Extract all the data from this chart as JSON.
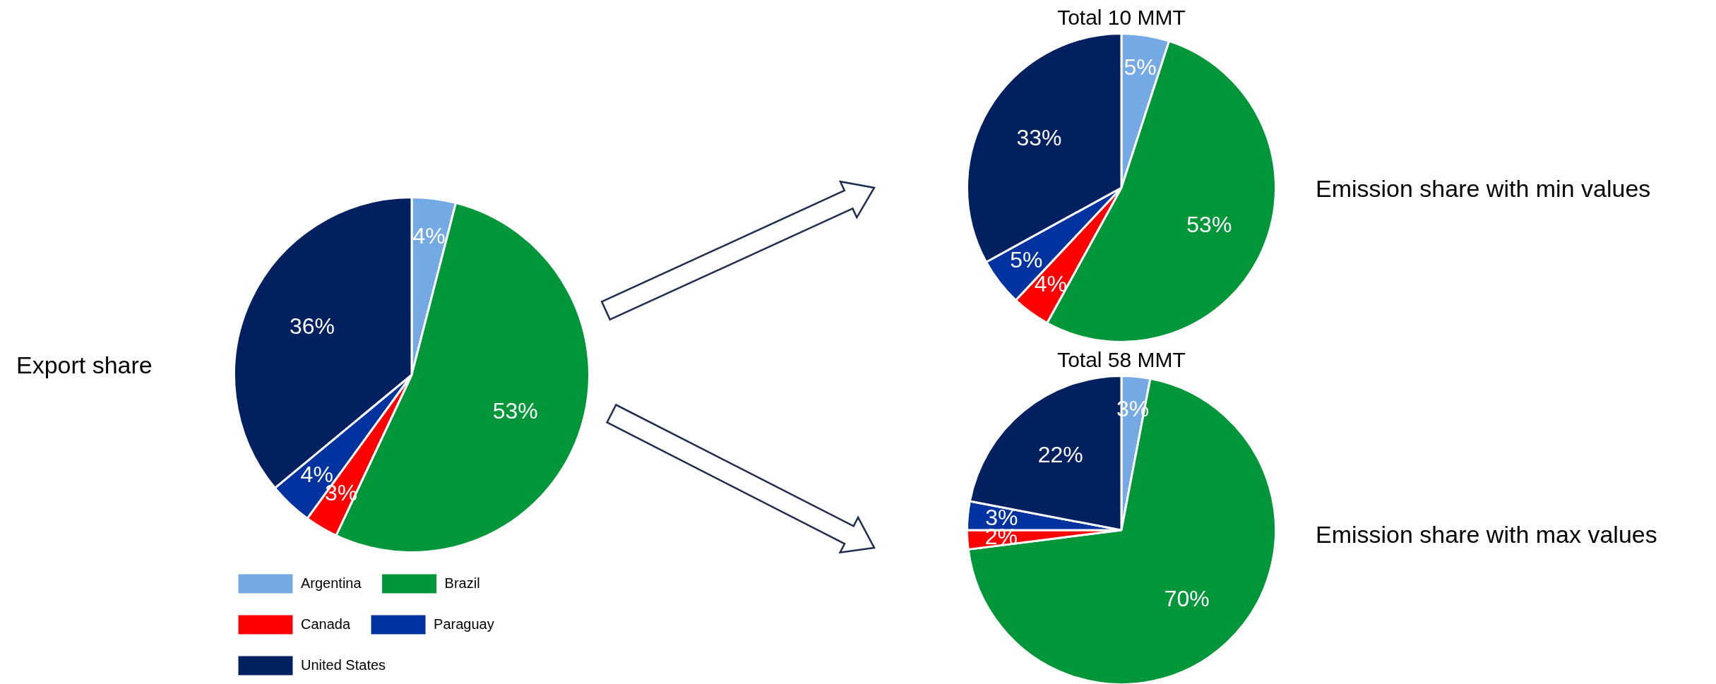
{
  "chart_data": [
    {
      "type": "pie",
      "title": "Export share",
      "categories": [
        "Argentina",
        "Brazil",
        "Canada",
        "Paraguay",
        "United States"
      ],
      "values": [
        4,
        53,
        3,
        4,
        36
      ],
      "value_labels": [
        "4%",
        "53%",
        "3%",
        "4%",
        "36%"
      ],
      "colors": [
        "#74a9e3",
        "#009639",
        "#ff0000",
        "#0033a0",
        "#002060"
      ],
      "legend": "bottom"
    },
    {
      "type": "pie",
      "title": "Emission share with min values",
      "subtitle": "Total 10 MMT",
      "categories": [
        null,
        null,
        null,
        null,
        null
      ],
      "values": [
        5,
        53,
        4,
        5,
        33
      ],
      "value_labels": [
        "5%",
        "53%",
        "4%",
        "5%",
        "33%"
      ],
      "colors": [
        "#74a9e3",
        "#009639",
        "#ff0000",
        "#0033a0",
        "#002060"
      ]
    },
    {
      "type": "pie",
      "title": "Emission share with max values",
      "subtitle": "Total  58 MMT",
      "categories": [
        null,
        null,
        null,
        null,
        null
      ],
      "values": [
        3,
        70,
        2,
        3,
        22
      ],
      "value_labels": [
        "3%",
        "70%",
        "2%",
        "3%",
        "22%"
      ],
      "colors": [
        "#74a9e3",
        "#009639",
        "#ff0000",
        "#0033a0",
        "#002060"
      ]
    }
  ]
}
